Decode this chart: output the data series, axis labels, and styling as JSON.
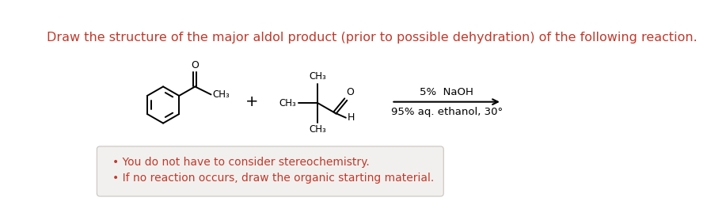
{
  "title": "Draw the structure of the major aldol product (prior to possible dehydration) of the following reaction.",
  "title_color": "#c0392b",
  "title_fontsize": 11.5,
  "bg_color": "#ffffff",
  "box_bg_color": "#f2f0ee",
  "box_text_color": "#c0392b",
  "box_text1": "You do not have to consider stereochemistry.",
  "box_text2": "If no reaction occurs, draw the organic starting material.",
  "condition_line1": "5%  NaOH",
  "condition_line2": "95% aq. ethanol, 30°"
}
